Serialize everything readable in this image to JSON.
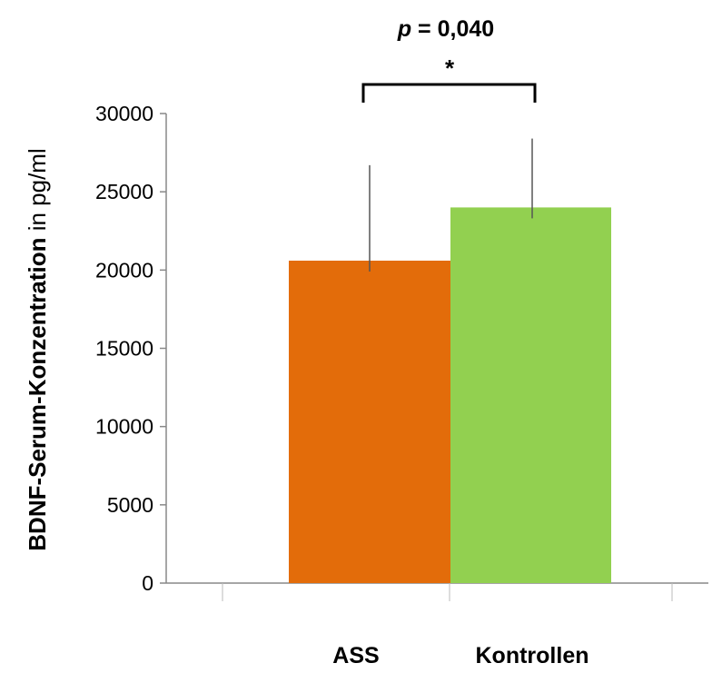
{
  "chart_data": {
    "type": "bar",
    "categories": [
      "ASS",
      "Kontrollen"
    ],
    "values": [
      20600,
      24000
    ],
    "error_bars": [
      6100,
      4400
    ],
    "bar_colors": [
      "#e36c0a",
      "#92d050"
    ],
    "ylabel_bold": "BDNF-Serum-Konzentration",
    "ylabel_rest": " in pg/ml",
    "ylim": [
      0,
      30000
    ],
    "yticks": [
      0,
      5000,
      10000,
      15000,
      20000,
      25000,
      30000
    ],
    "ytick_labels": [
      "0",
      "5000",
      "10000",
      "15000",
      "20000",
      "25000",
      "30000"
    ],
    "annotation": {
      "p_symbol": "p",
      "p_value_text": " = 0,040",
      "significance_marker": "*"
    },
    "grid": false,
    "legend": "none"
  }
}
